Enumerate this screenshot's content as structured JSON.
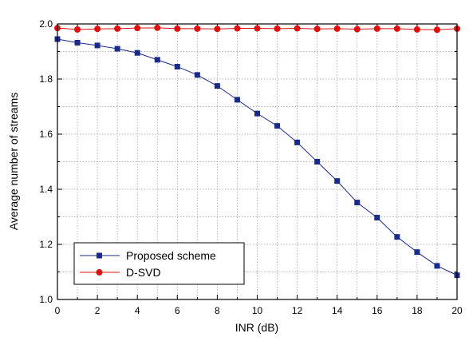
{
  "chart_data": {
    "type": "line",
    "xlabel": "INR (dB)",
    "ylabel": "Average number of streams",
    "xlim": [
      0,
      20
    ],
    "ylim": [
      1.0,
      2.0
    ],
    "xticks": [
      "0",
      "2",
      "4",
      "6",
      "8",
      "10",
      "12",
      "14",
      "16",
      "18",
      "20"
    ],
    "yticks": [
      "1.0",
      "1.2",
      "1.4",
      "1.6",
      "1.8",
      "2.0"
    ],
    "grid": true,
    "legend_position": "bottom-left",
    "x": [
      0,
      1,
      2,
      3,
      4,
      5,
      6,
      7,
      8,
      9,
      10,
      11,
      12,
      13,
      14,
      15,
      16,
      17,
      18,
      19,
      20
    ],
    "series": [
      {
        "name": "Proposed scheme",
        "color": "#1a2a8a",
        "marker": "square",
        "values": [
          1.945,
          1.932,
          1.922,
          1.91,
          1.895,
          1.87,
          1.845,
          1.815,
          1.775,
          1.725,
          1.675,
          1.63,
          1.57,
          1.5,
          1.43,
          1.352,
          1.297,
          1.227,
          1.172,
          1.122,
          1.088
        ]
      },
      {
        "name": "D-SVD",
        "color": "#e01010",
        "marker": "circle",
        "values": [
          1.985,
          1.98,
          1.982,
          1.983,
          1.985,
          1.986,
          1.983,
          1.983,
          1.982,
          1.984,
          1.984,
          1.983,
          1.984,
          1.982,
          1.983,
          1.981,
          1.983,
          1.983,
          1.98,
          1.979,
          1.983
        ]
      }
    ]
  }
}
